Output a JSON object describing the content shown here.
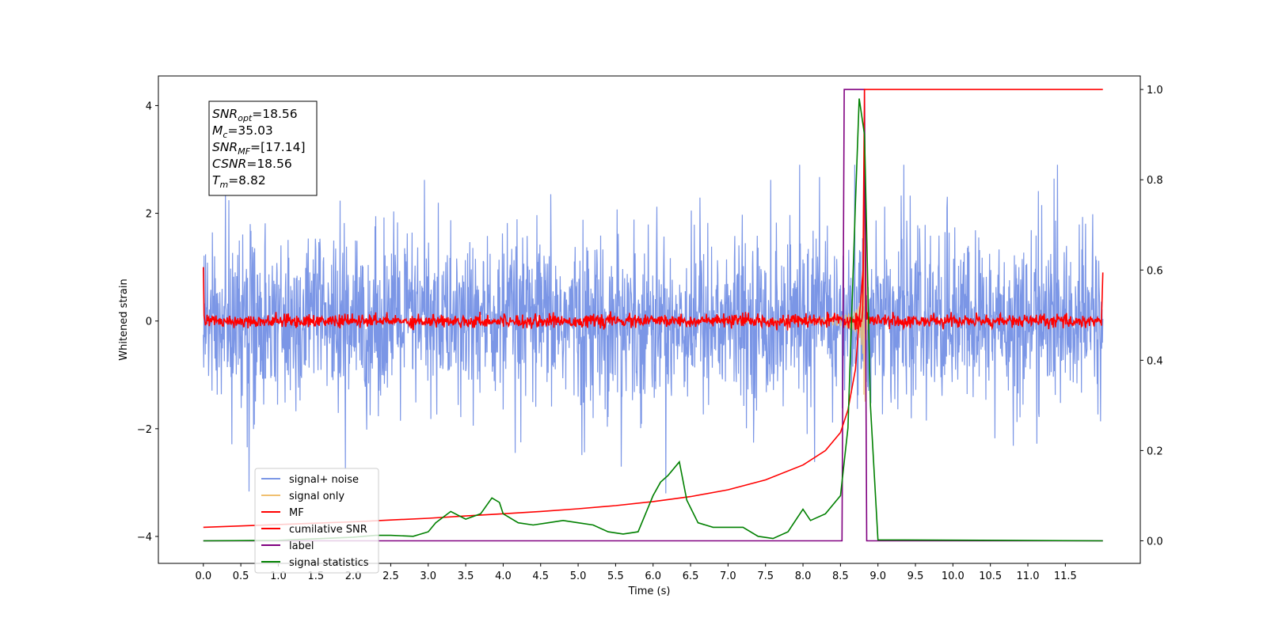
{
  "chart_data": {
    "type": "line",
    "xlabel": "Time (s)",
    "ylabel": "Whitened strain",
    "xlim": [
      -0.6,
      12.5
    ],
    "ylim_left": [
      -4.5,
      4.55
    ],
    "ylim_right": [
      -0.05,
      1.03
    ],
    "x_ticks": [
      0.0,
      0.5,
      1.0,
      1.5,
      2.0,
      2.5,
      3.0,
      3.5,
      4.0,
      4.5,
      5.0,
      5.5,
      6.0,
      6.5,
      7.0,
      7.5,
      8.0,
      8.5,
      9.0,
      9.5,
      10.0,
      10.5,
      11.0,
      11.5
    ],
    "x_tick_labels": [
      "0.0",
      "0.5",
      "1.0",
      "1.5",
      "2.0",
      "2.5",
      "3.0",
      "3.5",
      "4.0",
      "4.5",
      "5.0",
      "5.5",
      "6.0",
      "6.5",
      "7.0",
      "7.5",
      "8.0",
      "8.5",
      "9.0",
      "9.5",
      "10.0",
      "10.5",
      "11.0",
      "11.5"
    ],
    "y_left_ticks": [
      -4,
      -2,
      0,
      2,
      4
    ],
    "y_left_tick_labels": [
      "−4",
      "−2",
      "0",
      "2",
      "4"
    ],
    "y_right_ticks": [
      0.0,
      0.2,
      0.4,
      0.6,
      0.8,
      1.0
    ],
    "y_right_tick_labels": [
      "0.0",
      "0.2",
      "0.4",
      "0.6",
      "0.8",
      "1.0"
    ],
    "grid": false,
    "legend_position": "lower-left",
    "annotation": {
      "lines": [
        {
          "var": "SNR",
          "sub": "opt",
          "value": "=18.56"
        },
        {
          "var": "M",
          "sub": "c",
          "value": "=35.03"
        },
        {
          "var": "SNR",
          "sub": "MF",
          "value": "=[17.14]"
        },
        {
          "var": "CSNR",
          "sub": "",
          "value": "=18.56"
        },
        {
          "var": "T",
          "sub": "m",
          "value": "=8.82"
        }
      ]
    },
    "series": [
      {
        "name": "signal+ noise",
        "axis": "left",
        "color": "#7b96e6",
        "kind": "noise",
        "x_range": [
          0.0,
          12.0
        ],
        "amplitude_approx": 2.8
      },
      {
        "name": "signal only",
        "axis": "left",
        "color": "#f0c070",
        "kind": "chirp",
        "merger_time": 8.82,
        "peak_amplitude": 3.3
      },
      {
        "name": "MF",
        "axis": "left",
        "color": "#ff0000",
        "kind": "noise",
        "x_range": [
          0.0,
          12.0
        ],
        "amplitude_approx": 0.15,
        "peak": {
          "x": 8.82,
          "y": 3.3
        }
      },
      {
        "name": "cumilative SNR",
        "axis": "right",
        "color": "#ff0000",
        "x": [
          0.0,
          0.5,
          1.0,
          1.5,
          2.0,
          2.5,
          3.0,
          3.5,
          4.0,
          4.5,
          5.0,
          5.5,
          6.0,
          6.5,
          7.0,
          7.5,
          8.0,
          8.3,
          8.5,
          8.6,
          8.7,
          8.8,
          8.82,
          12.0
        ],
        "y": [
          0.03,
          0.033,
          0.036,
          0.039,
          0.042,
          0.046,
          0.05,
          0.055,
          0.06,
          0.065,
          0.071,
          0.078,
          0.087,
          0.098,
          0.113,
          0.135,
          0.168,
          0.2,
          0.24,
          0.29,
          0.38,
          0.6,
          1.0,
          1.0
        ]
      },
      {
        "name": "label",
        "axis": "right",
        "color": "#800080",
        "x": [
          0.0,
          8.52,
          8.55,
          8.82,
          8.85,
          12.0
        ],
        "y": [
          0.0,
          0.0,
          1.0,
          1.0,
          0.0,
          0.0
        ]
      },
      {
        "name": "signal statistics",
        "axis": "right",
        "color": "#008000",
        "x": [
          0.0,
          1.0,
          2.0,
          2.3,
          2.5,
          2.8,
          3.0,
          3.1,
          3.3,
          3.5,
          3.7,
          3.85,
          3.95,
          4.0,
          4.2,
          4.4,
          4.6,
          4.8,
          5.0,
          5.2,
          5.4,
          5.6,
          5.8,
          6.0,
          6.1,
          6.2,
          6.35,
          6.45,
          6.6,
          6.8,
          7.0,
          7.2,
          7.4,
          7.6,
          7.8,
          8.0,
          8.1,
          8.3,
          8.5,
          8.6,
          8.7,
          8.75,
          8.82,
          8.9,
          9.0,
          12.0
        ],
        "y": [
          0.0,
          0.001,
          0.008,
          0.012,
          0.012,
          0.01,
          0.02,
          0.04,
          0.065,
          0.048,
          0.06,
          0.095,
          0.085,
          0.06,
          0.04,
          0.035,
          0.04,
          0.045,
          0.04,
          0.035,
          0.02,
          0.015,
          0.02,
          0.1,
          0.13,
          0.145,
          0.175,
          0.09,
          0.04,
          0.03,
          0.03,
          0.03,
          0.01,
          0.005,
          0.02,
          0.07,
          0.045,
          0.06,
          0.1,
          0.25,
          0.75,
          0.98,
          0.9,
          0.3,
          0.002,
          0.0
        ]
      }
    ]
  }
}
